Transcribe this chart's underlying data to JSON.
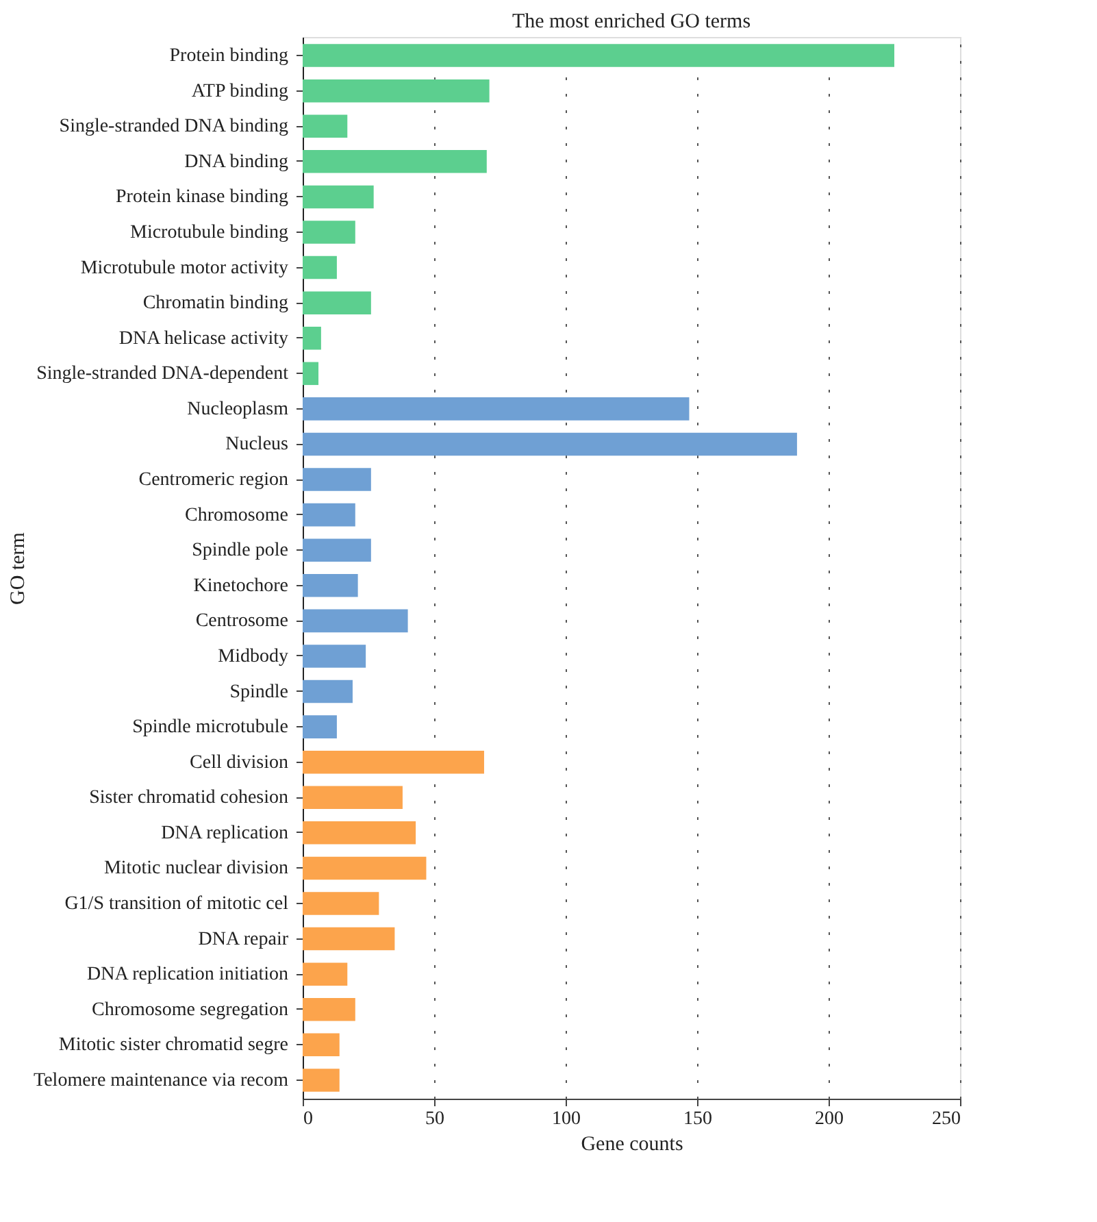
{
  "chart_data": {
    "type": "bar",
    "orientation": "horizontal",
    "title": "The most enriched GO terms",
    "xlabel": "Gene counts",
    "ylabel": "GO term",
    "categories": [
      "Protein binding",
      "ATP binding",
      "Single-stranded DNA binding",
      "DNA binding",
      "Protein kinase binding",
      "Microtubule binding",
      "Microtubule motor activity",
      "Chromatin binding",
      "DNA helicase activity",
      "Single-stranded DNA-dependent",
      "Nucleoplasm",
      "Nucleus",
      "Centromeric region",
      "Chromosome",
      "Spindle pole",
      "Kinetochore",
      "Centrosome",
      "Midbody",
      "Spindle",
      "Spindle microtubule",
      "Cell division",
      "Sister chromatid cohesion",
      "DNA replication",
      "Mitotic nuclear division",
      "G1/S transition of mitotic cel",
      "DNA repair",
      "DNA replication initiation",
      "Chromosome segregation",
      "Mitotic sister chromatid segre",
      "Telomere maintenance via recom"
    ],
    "values": [
      225,
      71,
      17,
      70,
      27,
      20,
      13,
      26,
      7,
      6,
      147,
      188,
      26,
      20,
      26,
      21,
      40,
      24,
      19,
      13,
      69,
      38,
      43,
      47,
      29,
      35,
      17,
      20,
      14,
      14
    ],
    "colors": [
      "#5ccf8f",
      "#5ccf8f",
      "#5ccf8f",
      "#5ccf8f",
      "#5ccf8f",
      "#5ccf8f",
      "#5ccf8f",
      "#5ccf8f",
      "#5ccf8f",
      "#5ccf8f",
      "#6fa0d4",
      "#6fa0d4",
      "#6fa0d4",
      "#6fa0d4",
      "#6fa0d4",
      "#6fa0d4",
      "#6fa0d4",
      "#6fa0d4",
      "#6fa0d4",
      "#6fa0d4",
      "#fca44c",
      "#fca44c",
      "#fca44c",
      "#fca44c",
      "#fca44c",
      "#fca44c",
      "#fca44c",
      "#fca44c",
      "#fca44c",
      "#fca44c"
    ],
    "xlim": [
      0,
      250
    ],
    "xticks": [
      0,
      50,
      100,
      150,
      200,
      250
    ],
    "grid": "x",
    "legend": false
  }
}
